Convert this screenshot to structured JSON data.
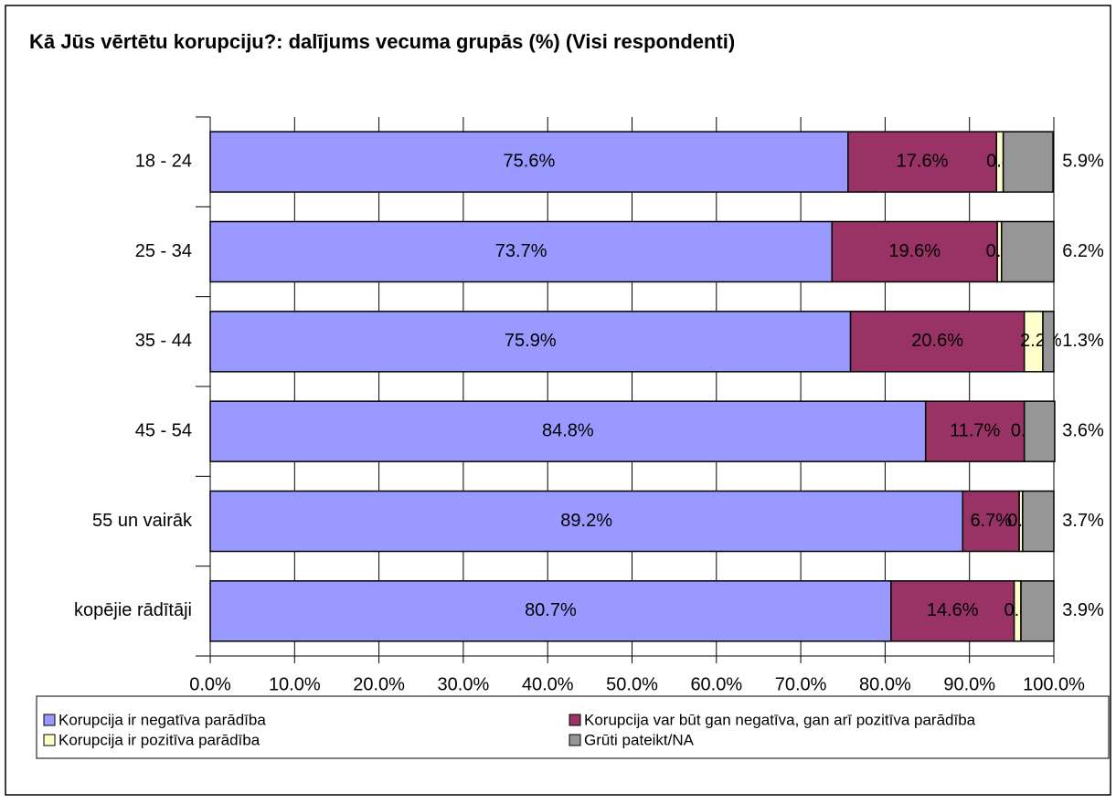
{
  "chart_data": {
    "type": "stacked_barh",
    "title": "Kā Jūs vērtētu korupciju?: dalījums vecuma grupās (%) (Visi respondenti)",
    "categories": [
      "18 - 24",
      "25 - 34",
      "35 - 44",
      "45 - 54",
      "55 un vairāk",
      "kopējie rādītāji"
    ],
    "series": [
      {
        "name": "Korupcija ir negatīva parādība",
        "color": "#9999ff",
        "values": [
          75.6,
          73.7,
          75.9,
          84.8,
          89.2,
          80.7
        ],
        "value_labels": [
          "75.6%",
          "73.7%",
          "75.9%",
          "84.8%",
          "89.2%",
          "80.7%"
        ]
      },
      {
        "name": "Korupcija var būt gan negatīva, gan arī pozitīva parādība",
        "color": "#993366",
        "values": [
          17.6,
          19.6,
          20.6,
          11.7,
          6.7,
          14.6
        ],
        "value_labels": [
          "17.6%",
          "19.6%",
          "20.6%",
          "11.7%",
          "6.7%",
          "14.6%"
        ]
      },
      {
        "name": "Korupcija ir pozitīva parādība",
        "color": "#ffffcc",
        "values": [
          0.8,
          0.5,
          2.2,
          0.0,
          0.4,
          0.8
        ],
        "value_labels": [
          "0.8%",
          "0.5%",
          "2.2%",
          "0.0%",
          "0.4%",
          "0.8%"
        ]
      },
      {
        "name": "Grūti pateikt/NA",
        "color": "#969696",
        "values": [
          5.9,
          6.2,
          1.3,
          3.6,
          3.7,
          3.9
        ],
        "value_labels": [
          "5.9%",
          "6.2%",
          "1.3%",
          "3.6%",
          "3.7%",
          "3.9%"
        ]
      }
    ],
    "xlim": [
      0,
      100
    ],
    "xticks": [
      {
        "value": 0,
        "label": "0.0%"
      },
      {
        "value": 10,
        "label": "10.0%"
      },
      {
        "value": 20,
        "label": "20.0%"
      },
      {
        "value": 30,
        "label": "30.0%"
      },
      {
        "value": 40,
        "label": "40.0%"
      },
      {
        "value": 50,
        "label": "50.0%"
      },
      {
        "value": 60,
        "label": "60.0%"
      },
      {
        "value": 70,
        "label": "70.0%"
      },
      {
        "value": 80,
        "label": "80.0%"
      },
      {
        "value": 90,
        "label": "90.0%"
      },
      {
        "value": 100,
        "label": "100.0%"
      }
    ],
    "grid": true
  }
}
